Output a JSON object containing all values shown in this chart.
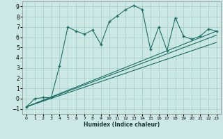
{
  "xlabel": "Humidex (Indice chaleur)",
  "xlim": [
    -0.5,
    23.5
  ],
  "ylim": [
    -1.5,
    9.5
  ],
  "xticks": [
    0,
    1,
    2,
    3,
    4,
    5,
    6,
    7,
    8,
    9,
    10,
    11,
    12,
    13,
    14,
    15,
    16,
    17,
    18,
    19,
    20,
    21,
    22,
    23
  ],
  "yticks": [
    -1,
    0,
    1,
    2,
    3,
    4,
    5,
    6,
    7,
    8,
    9
  ],
  "bg_color": "#cce8e4",
  "grid_color": "#aacfca",
  "line_color": "#1a6e64",
  "line1_x": [
    0,
    1,
    2,
    3,
    4,
    5,
    6,
    7,
    8,
    9,
    10,
    11,
    12,
    13,
    14,
    15,
    16,
    17,
    18,
    19,
    20,
    21,
    22,
    23
  ],
  "line1_y": [
    -0.8,
    0.0,
    0.1,
    0.1,
    3.2,
    7.0,
    6.6,
    6.3,
    6.7,
    5.3,
    7.5,
    8.1,
    8.7,
    9.1,
    8.7,
    4.8,
    7.0,
    4.7,
    7.9,
    6.1,
    5.8,
    6.1,
    6.8,
    6.6
  ],
  "line2_x": [
    0,
    23
  ],
  "line2_y": [
    -0.8,
    6.6
  ],
  "line3_x": [
    0,
    23
  ],
  "line3_y": [
    -0.8,
    6.2
  ],
  "line4_x": [
    0,
    23
  ],
  "line4_y": [
    -0.8,
    5.5
  ]
}
